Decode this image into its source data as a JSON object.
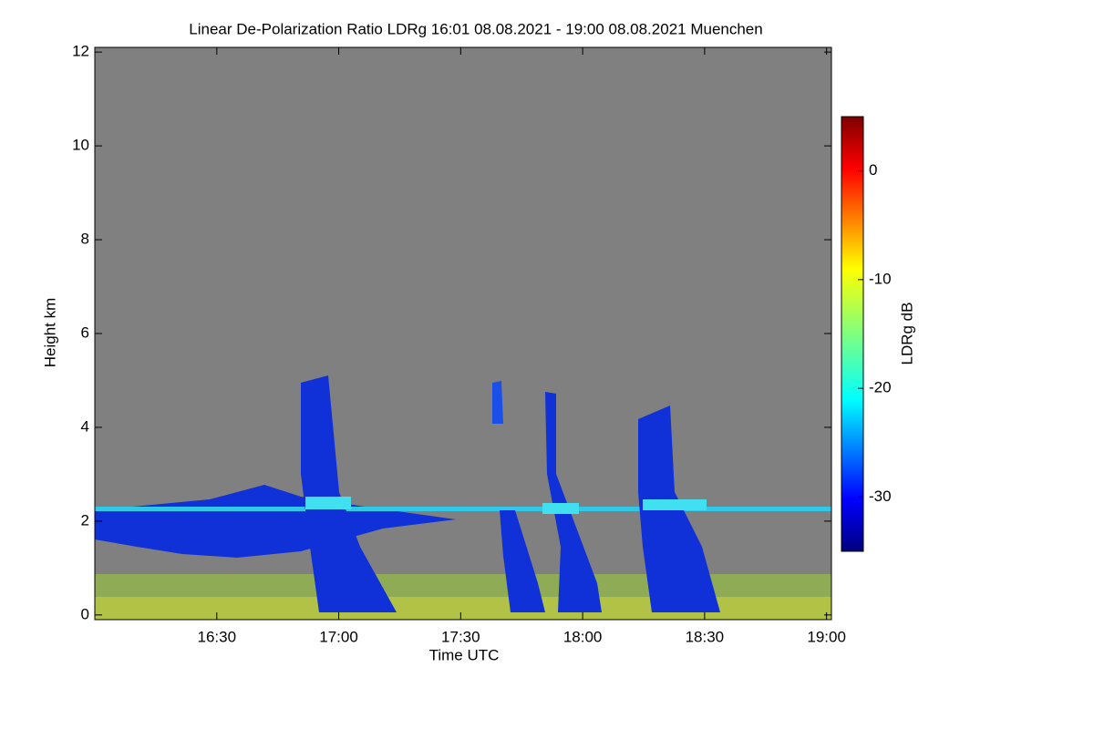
{
  "chart_data": {
    "type": "heatmap",
    "title": "Linear De-Polarization Ratio LDRg   16:01 08.08.2021 - 19:00 08.08.2021 Muenchen",
    "x_label": "Time UTC",
    "y_label": "Height km",
    "colorbar_label": "LDRg dB",
    "xlim": [
      16,
      19.02
    ],
    "xticks": [
      {
        "value": 16.5,
        "label": "16:30"
      },
      {
        "value": 17,
        "label": "17:00"
      },
      {
        "value": 17.5,
        "label": "17:30"
      },
      {
        "value": 18,
        "label": "18:00"
      },
      {
        "value": 18.5,
        "label": "18:30"
      },
      {
        "value": 19,
        "label": "19:00"
      }
    ],
    "ylim": [
      -0.1,
      12.1
    ],
    "yticks": [
      0,
      2,
      4,
      6,
      8,
      10,
      12
    ],
    "clim": [
      -35,
      5
    ],
    "cticks": [
      0,
      -10,
      -20,
      -30
    ]
  }
}
